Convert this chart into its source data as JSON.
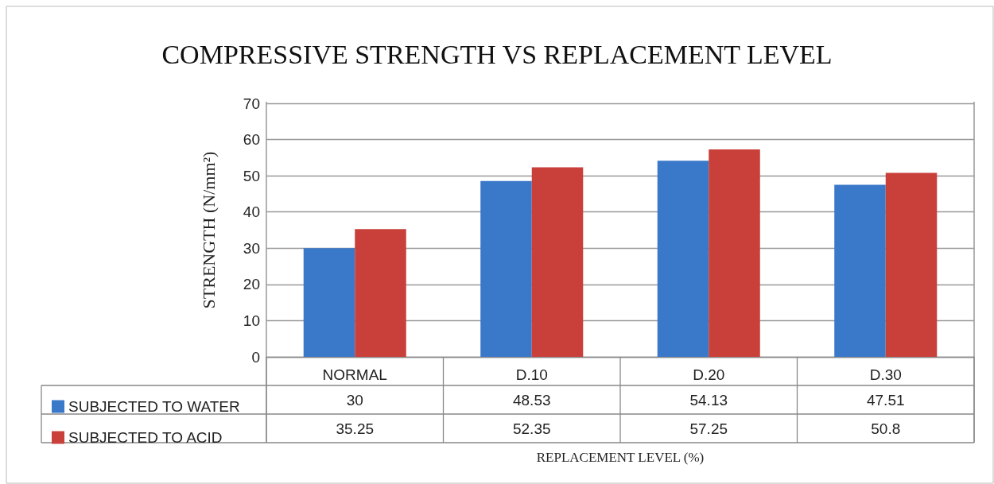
{
  "chart_data": {
    "type": "bar",
    "title": "COMPRESSIVE STRENGTH VS REPLACEMENT LEVEL",
    "xlabel": "REPLACEMENT LEVEL (%)",
    "ylabel": "STRENGTH (N/mm²)",
    "categories": [
      "NORMAL",
      "D.10",
      "D.20",
      "D.30"
    ],
    "series": [
      {
        "name": "SUBJECTED TO WATER",
        "color": "#3a78c9",
        "values": [
          30,
          48.53,
          54.13,
          47.51
        ]
      },
      {
        "name": "SUBJECTED TO ACID",
        "color": "#c9403a",
        "values": [
          35.25,
          52.35,
          57.25,
          50.8
        ]
      }
    ],
    "ylim": [
      0,
      70
    ],
    "yticks": [
      0,
      10,
      20,
      30,
      40,
      50,
      60,
      70
    ],
    "grid": "y",
    "legend": "bottom",
    "data_labels": true
  }
}
